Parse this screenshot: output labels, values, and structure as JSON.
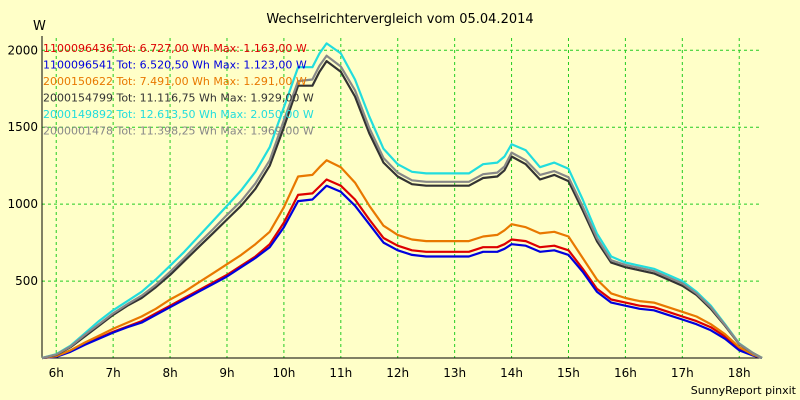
{
  "chart_data": {
    "type": "line",
    "title": "Wechselrichtervergleich vom 05.04.2014",
    "ylabel": "W",
    "xlabel": "",
    "x_tick_labels": [
      "6h",
      "7h",
      "8h",
      "9h",
      "10h",
      "11h",
      "12h",
      "13h",
      "14h",
      "15h",
      "16h",
      "17h",
      "18h"
    ],
    "x_range_hours": [
      5.75,
      18.4
    ],
    "ylim": [
      0,
      2080
    ],
    "y_ticks": [
      500,
      1000,
      1500,
      2000
    ],
    "grid": true,
    "legend_position": "top-left",
    "x": [
      5.75,
      6.0,
      6.25,
      6.5,
      6.75,
      7.0,
      7.25,
      7.5,
      7.75,
      8.0,
      8.25,
      8.5,
      8.75,
      9.0,
      9.25,
      9.5,
      9.75,
      10.0,
      10.25,
      10.5,
      10.625,
      10.75,
      11.0,
      11.25,
      11.5,
      11.75,
      12.0,
      12.25,
      12.5,
      12.75,
      13.0,
      13.25,
      13.5,
      13.75,
      13.875,
      14.0,
      14.25,
      14.5,
      14.75,
      15.0,
      15.25,
      15.5,
      15.75,
      16.0,
      16.25,
      16.5,
      16.75,
      17.0,
      17.25,
      17.5,
      17.75,
      18.0,
      18.25,
      18.4
    ],
    "series": [
      {
        "name": "1100096436",
        "legend_text": "1100096436 Tot: 6.727,00 Wh Max: 1.163,00 W",
        "color": "#dd0000",
        "values": [
          0,
          10,
          45,
          90,
          130,
          170,
          205,
          240,
          290,
          340,
          390,
          440,
          490,
          540,
          600,
          660,
          740,
          880,
          1060,
          1070,
          1115,
          1160,
          1120,
          1030,
          900,
          780,
          730,
          700,
          690,
          690,
          690,
          690,
          720,
          720,
          740,
          770,
          760,
          720,
          730,
          700,
          580,
          450,
          380,
          360,
          340,
          330,
          300,
          270,
          240,
          200,
          140,
          60,
          20,
          0
        ]
      },
      {
        "name": "1100096541",
        "legend_text": "1100096541 Tot: 6.520,50 Wh Max: 1.123,00 W",
        "color": "#0000dd",
        "values": [
          0,
          8,
          40,
          85,
          125,
          165,
          200,
          230,
          280,
          330,
          380,
          430,
          480,
          530,
          590,
          650,
          720,
          850,
          1020,
          1030,
          1075,
          1120,
          1080,
          990,
          870,
          750,
          700,
          670,
          660,
          660,
          660,
          660,
          690,
          690,
          710,
          740,
          730,
          690,
          700,
          670,
          560,
          430,
          360,
          340,
          320,
          310,
          280,
          250,
          220,
          180,
          125,
          50,
          15,
          0
        ]
      },
      {
        "name": "2000150622",
        "legend_text": "2000150622 Tot: 7.491,00 Wh Max: 1.291,00 W",
        "color": "#e87800",
        "values": [
          0,
          12,
          50,
          100,
          145,
          190,
          230,
          270,
          320,
          380,
          430,
          490,
          550,
          610,
          670,
          740,
          820,
          980,
          1180,
          1190,
          1240,
          1285,
          1240,
          1140,
          990,
          860,
          800,
          770,
          760,
          760,
          760,
          760,
          790,
          800,
          830,
          870,
          850,
          810,
          820,
          790,
          650,
          510,
          420,
          390,
          370,
          360,
          330,
          300,
          270,
          220,
          155,
          70,
          20,
          0
        ]
      },
      {
        "name": "2000154799",
        "legend_text": "2000154799 Tot: 11.116,75 Wh Max: 1.929,00 W",
        "color": "#333333",
        "values": [
          0,
          20,
          70,
          140,
          210,
          280,
          340,
          390,
          460,
          540,
          630,
          720,
          810,
          900,
          990,
          1100,
          1250,
          1500,
          1770,
          1770,
          1860,
          1930,
          1860,
          1700,
          1460,
          1270,
          1180,
          1130,
          1120,
          1120,
          1120,
          1120,
          1170,
          1180,
          1220,
          1310,
          1260,
          1160,
          1190,
          1150,
          960,
          760,
          620,
          590,
          570,
          550,
          510,
          470,
          410,
          320,
          210,
          90,
          30,
          0
        ]
      },
      {
        "name": "2000149892",
        "legend_text": "2000149892 Tot: 12.613,50 Wh Max: 2.050,00 W",
        "color": "#22dddd",
        "values": [
          0,
          25,
          80,
          160,
          240,
          310,
          370,
          430,
          510,
          600,
          690,
          790,
          890,
          990,
          1090,
          1210,
          1370,
          1630,
          1890,
          1890,
          1980,
          2045,
          1980,
          1810,
          1570,
          1360,
          1260,
          1210,
          1200,
          1200,
          1200,
          1200,
          1260,
          1270,
          1310,
          1390,
          1350,
          1240,
          1270,
          1230,
          1030,
          810,
          660,
          620,
          600,
          580,
          540,
          500,
          430,
          340,
          220,
          95,
          30,
          0
        ]
      },
      {
        "name": "2000001478",
        "legend_text": "2000001478 Tot: 11.398,25 Wh Max: 1.969,00 W",
        "color": "#888888",
        "values": [
          0,
          22,
          75,
          150,
          220,
          290,
          350,
          405,
          475,
          560,
          650,
          745,
          835,
          930,
          1020,
          1135,
          1285,
          1545,
          1800,
          1810,
          1900,
          1965,
          1895,
          1740,
          1495,
          1300,
          1205,
          1155,
          1145,
          1145,
          1145,
          1145,
          1195,
          1205,
          1245,
          1335,
          1285,
          1190,
          1215,
          1175,
          985,
          780,
          635,
          605,
          585,
          565,
          525,
          485,
          420,
          330,
          215,
          92,
          30,
          0
        ]
      }
    ]
  },
  "footer": "SunnyReport pinxit",
  "colors": {
    "background": "#ffffc8",
    "grid": "#22cc22",
    "axis": "#000000"
  }
}
